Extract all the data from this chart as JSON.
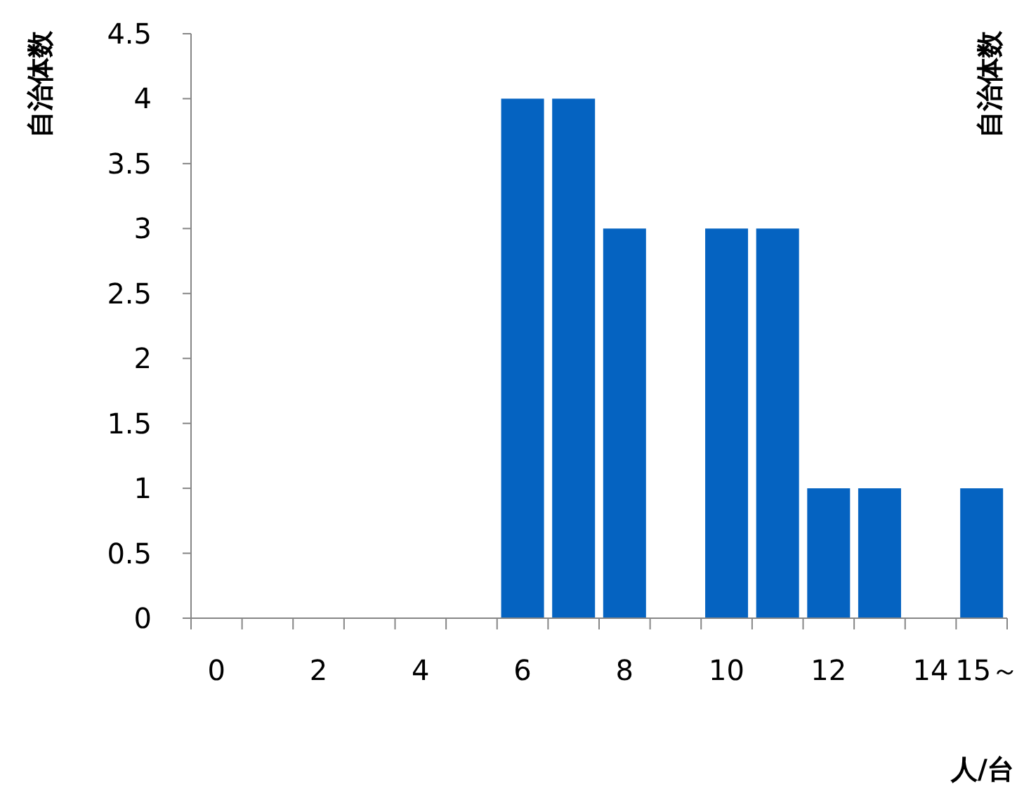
{
  "chart_data": {
    "type": "bar",
    "ylabel": "自治体数",
    "y2label": "自治体数",
    "xlabel": "人/台",
    "categories": [
      "0",
      null,
      "2",
      null,
      "4",
      null,
      "6",
      null,
      "8",
      null,
      "10",
      null,
      "12",
      null,
      "14",
      "15～"
    ],
    "values": [
      0,
      0,
      0,
      0,
      0,
      0,
      4,
      4,
      3,
      0,
      3,
      3,
      1,
      1,
      0,
      1
    ],
    "color": "#0563c1",
    "ylim": [
      0,
      4.5
    ],
    "yticks": [
      0,
      0.5,
      1,
      1.5,
      2,
      2.5,
      3,
      3.5,
      4,
      4.5
    ],
    "grid": false
  }
}
